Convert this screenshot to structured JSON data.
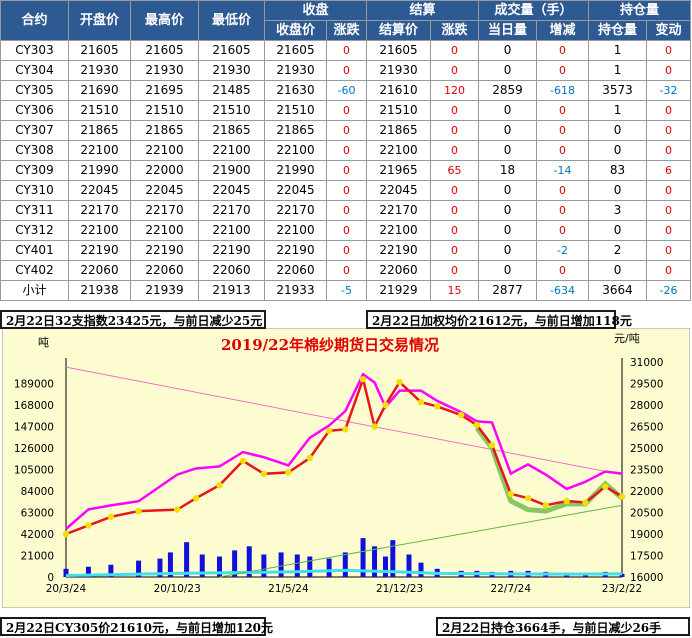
{
  "table": {
    "group_headers": [
      "合约",
      "开盘价",
      "最高价",
      "最低价",
      "收盘",
      "结算",
      "成交量（手）",
      "持仓量"
    ],
    "sub_headers": [
      "收盘价",
      "涨跌",
      "结算价",
      "涨跌",
      "当日量",
      "增减",
      "持仓量",
      "变动"
    ],
    "rows": [
      {
        "contract": "CY303",
        "open": "21605",
        "high": "21605",
        "low": "21605",
        "close": "21605",
        "close_chg": "0",
        "settle": "21605",
        "settle_chg": "0",
        "vol": "0",
        "vol_chg": "0",
        "oi": "1",
        "oi_chg": "0"
      },
      {
        "contract": "CY304",
        "open": "21930",
        "high": "21930",
        "low": "21930",
        "close": "21930",
        "close_chg": "0",
        "settle": "21930",
        "settle_chg": "0",
        "vol": "0",
        "vol_chg": "0",
        "oi": "1",
        "oi_chg": "0"
      },
      {
        "contract": "CY305",
        "open": "21690",
        "high": "21695",
        "low": "21485",
        "close": "21630",
        "close_chg": "-60",
        "settle": "21610",
        "settle_chg": "120",
        "vol": "2859",
        "vol_chg": "-618",
        "oi": "3573",
        "oi_chg": "-32"
      },
      {
        "contract": "CY306",
        "open": "21510",
        "high": "21510",
        "low": "21510",
        "close": "21510",
        "close_chg": "0",
        "settle": "21510",
        "settle_chg": "0",
        "vol": "0",
        "vol_chg": "0",
        "oi": "1",
        "oi_chg": "0"
      },
      {
        "contract": "CY307",
        "open": "21865",
        "high": "21865",
        "low": "21865",
        "close": "21865",
        "close_chg": "0",
        "settle": "21865",
        "settle_chg": "0",
        "vol": "0",
        "vol_chg": "0",
        "oi": "0",
        "oi_chg": "0"
      },
      {
        "contract": "CY308",
        "open": "22100",
        "high": "22100",
        "low": "22100",
        "close": "22100",
        "close_chg": "0",
        "settle": "22100",
        "settle_chg": "0",
        "vol": "0",
        "vol_chg": "0",
        "oi": "0",
        "oi_chg": "0"
      },
      {
        "contract": "CY309",
        "open": "21990",
        "high": "22000",
        "low": "21900",
        "close": "21990",
        "close_chg": "0",
        "settle": "21965",
        "settle_chg": "65",
        "vol": "18",
        "vol_chg": "-14",
        "oi": "83",
        "oi_chg": "6"
      },
      {
        "contract": "CY310",
        "open": "22045",
        "high": "22045",
        "low": "22045",
        "close": "22045",
        "close_chg": "0",
        "settle": "22045",
        "settle_chg": "0",
        "vol": "0",
        "vol_chg": "0",
        "oi": "0",
        "oi_chg": "0"
      },
      {
        "contract": "CY311",
        "open": "22170",
        "high": "22170",
        "low": "22170",
        "close": "22170",
        "close_chg": "0",
        "settle": "22170",
        "settle_chg": "0",
        "vol": "0",
        "vol_chg": "0",
        "oi": "3",
        "oi_chg": "0"
      },
      {
        "contract": "CY312",
        "open": "22100",
        "high": "22100",
        "low": "22100",
        "close": "22100",
        "close_chg": "0",
        "settle": "22100",
        "settle_chg": "0",
        "vol": "0",
        "vol_chg": "0",
        "oi": "0",
        "oi_chg": "0"
      },
      {
        "contract": "CY401",
        "open": "22190",
        "high": "22190",
        "low": "22190",
        "close": "22190",
        "close_chg": "0",
        "settle": "22190",
        "settle_chg": "0",
        "vol": "0",
        "vol_chg": "-2",
        "oi": "2",
        "oi_chg": "0"
      },
      {
        "contract": "CY402",
        "open": "22060",
        "high": "22060",
        "low": "22060",
        "close": "22060",
        "close_chg": "0",
        "settle": "22060",
        "settle_chg": "0",
        "vol": "0",
        "vol_chg": "0",
        "oi": "0",
        "oi_chg": "0"
      },
      {
        "contract": "小计",
        "open": "21938",
        "high": "21939",
        "low": "21913",
        "close": "21933",
        "close_chg": "-5",
        "settle": "21929",
        "settle_chg": "15",
        "vol": "2877",
        "vol_chg": "-634",
        "oi": "3664",
        "oi_chg": "-26"
      }
    ]
  },
  "summaries": {
    "index": "2月22日32支指数23425元，与前日减少25元",
    "weighted": "2月22日加权均价21612元，与前日增加118元",
    "cy305": "2月22日CY305价21610元，与前日增加120元",
    "open_interest": "2月22日持仓3664手，与前日减少26手"
  },
  "colors": {
    "header_bg": "#2e5a94",
    "positive": "#e00000",
    "negative": "#0070c0",
    "chart_bg": "#fdfcd0",
    "oi_line": "#ff00ff",
    "price_line": "#e8151c",
    "price_dots": "#f0e000",
    "green_line": "#88c860",
    "volume_bars": "#1010dd",
    "cyan_line": "#40e0f0"
  },
  "chart_data": {
    "type": "line",
    "title": "2019/22年棉纱期货日交易情况",
    "left_unit": "吨",
    "right_unit": "元/吨",
    "left_ticks": [
      "0",
      "21000",
      "42000",
      "63000",
      "84000",
      "105000",
      "126000",
      "147000",
      "168000",
      "189000"
    ],
    "right_ticks": [
      "16000",
      "17500",
      "19000",
      "20500",
      "22000",
      "23500",
      "25000",
      "26500",
      "28000",
      "29500",
      "31000"
    ],
    "x_ticks": [
      "20/3/24",
      "20/10/23",
      "21/5/24",
      "21/12/23",
      "22/7/24",
      "23/2/22"
    ],
    "left_ylim": [
      0,
      210000
    ],
    "right_ylim": [
      16000,
      31000
    ],
    "x_range": [
      "2020-03-24",
      "2023-02-22"
    ],
    "series": [
      {
        "role": "open_interest",
        "axis": "left",
        "x": [
          "2020-03-24",
          "2020-05-06",
          "2020-06-18",
          "2020-08-10",
          "2020-10-23",
          "2020-11-28",
          "2021-01-12",
          "2021-02-26",
          "2021-04-07",
          "2021-05-24",
          "2021-07-04",
          "2021-08-10",
          "2021-09-10",
          "2021-10-14",
          "2021-11-05",
          "2021-11-26",
          "2021-12-23",
          "2022-02-02",
          "2022-03-05",
          "2022-04-20",
          "2022-05-20",
          "2022-06-18",
          "2022-07-24",
          "2022-08-26",
          "2022-09-29",
          "2022-11-08",
          "2022-12-14",
          "2023-01-21",
          "2023-02-22"
        ],
        "y": [
          47000,
          66000,
          70000,
          74000,
          100000,
          106000,
          108000,
          122000,
          117000,
          109000,
          136000,
          148000,
          162000,
          198000,
          190000,
          166000,
          182000,
          182000,
          172000,
          161000,
          152000,
          151000,
          101000,
          110000,
          100000,
          86000,
          93000,
          103000,
          101000
        ]
      },
      {
        "role": "price",
        "axis": "right",
        "x": [
          "2020-03-24",
          "2020-05-06",
          "2020-06-18",
          "2020-08-10",
          "2020-10-23",
          "2020-11-28",
          "2021-01-12",
          "2021-02-26",
          "2021-04-07",
          "2021-05-24",
          "2021-07-04",
          "2021-08-10",
          "2021-09-10",
          "2021-10-14",
          "2021-11-05",
          "2021-11-26",
          "2021-12-23",
          "2022-02-02",
          "2022-03-05",
          "2022-04-20",
          "2022-05-20",
          "2022-06-18",
          "2022-07-24",
          "2022-08-26",
          "2022-09-29",
          "2022-11-08",
          "2022-12-14",
          "2023-01-21",
          "2023-02-22"
        ],
        "y": [
          19000,
          19600,
          20200,
          20600,
          20700,
          21500,
          22400,
          24100,
          23200,
          23300,
          24300,
          26200,
          26300,
          29800,
          26500,
          28000,
          29600,
          28200,
          27900,
          27300,
          26600,
          25200,
          21800,
          21500,
          21000,
          21300,
          21200,
          22300,
          21610
        ]
      },
      {
        "role": "green_line",
        "axis": "right",
        "x": [
          "2022-05-20",
          "2022-06-18",
          "2022-07-24",
          "2022-08-26",
          "2022-09-29",
          "2022-11-08",
          "2022-12-14",
          "2023-01-21",
          "2023-02-22"
        ],
        "y": [
          26400,
          25000,
          21300,
          20700,
          20600,
          21100,
          21100,
          22500,
          21500
        ]
      },
      {
        "role": "cyan_line",
        "axis": "left",
        "x": [
          "2020-03-24",
          "2020-10-23",
          "2021-05-24",
          "2021-09-10",
          "2021-12-23",
          "2022-03-05",
          "2022-07-24",
          "2022-11-08",
          "2023-02-22"
        ],
        "y": [
          1500,
          3500,
          5000,
          6500,
          5000,
          3500,
          3000,
          2800,
          3000
        ]
      },
      {
        "role": "volume",
        "axis": "left",
        "type": "bar",
        "x": [
          "2020-03-24",
          "2020-05-06",
          "2020-06-18",
          "2020-08-10",
          "2020-09-20",
          "2020-10-10",
          "2020-11-10",
          "2020-12-10",
          "2021-01-12",
          "2021-02-10",
          "2021-03-10",
          "2021-04-07",
          "2021-05-10",
          "2021-06-10",
          "2021-07-04",
          "2021-08-10",
          "2021-09-10",
          "2021-10-14",
          "2021-11-05",
          "2021-11-26",
          "2021-12-10",
          "2022-01-10",
          "2022-02-02",
          "2022-03-05",
          "2022-04-20",
          "2022-05-20",
          "2022-06-18",
          "2022-07-24",
          "2022-08-26",
          "2022-09-29",
          "2022-11-08",
          "2022-12-14",
          "2023-01-21",
          "2023-02-22"
        ],
        "y": [
          8000,
          10000,
          12000,
          16000,
          18000,
          24000,
          34000,
          22000,
          20000,
          26000,
          30000,
          22000,
          24000,
          22000,
          20000,
          18000,
          24000,
          38000,
          30000,
          20000,
          36000,
          22000,
          14000,
          8000,
          6000,
          6000,
          5000,
          6000,
          6000,
          5000,
          4000,
          4000,
          5000,
          3000
        ]
      }
    ]
  }
}
